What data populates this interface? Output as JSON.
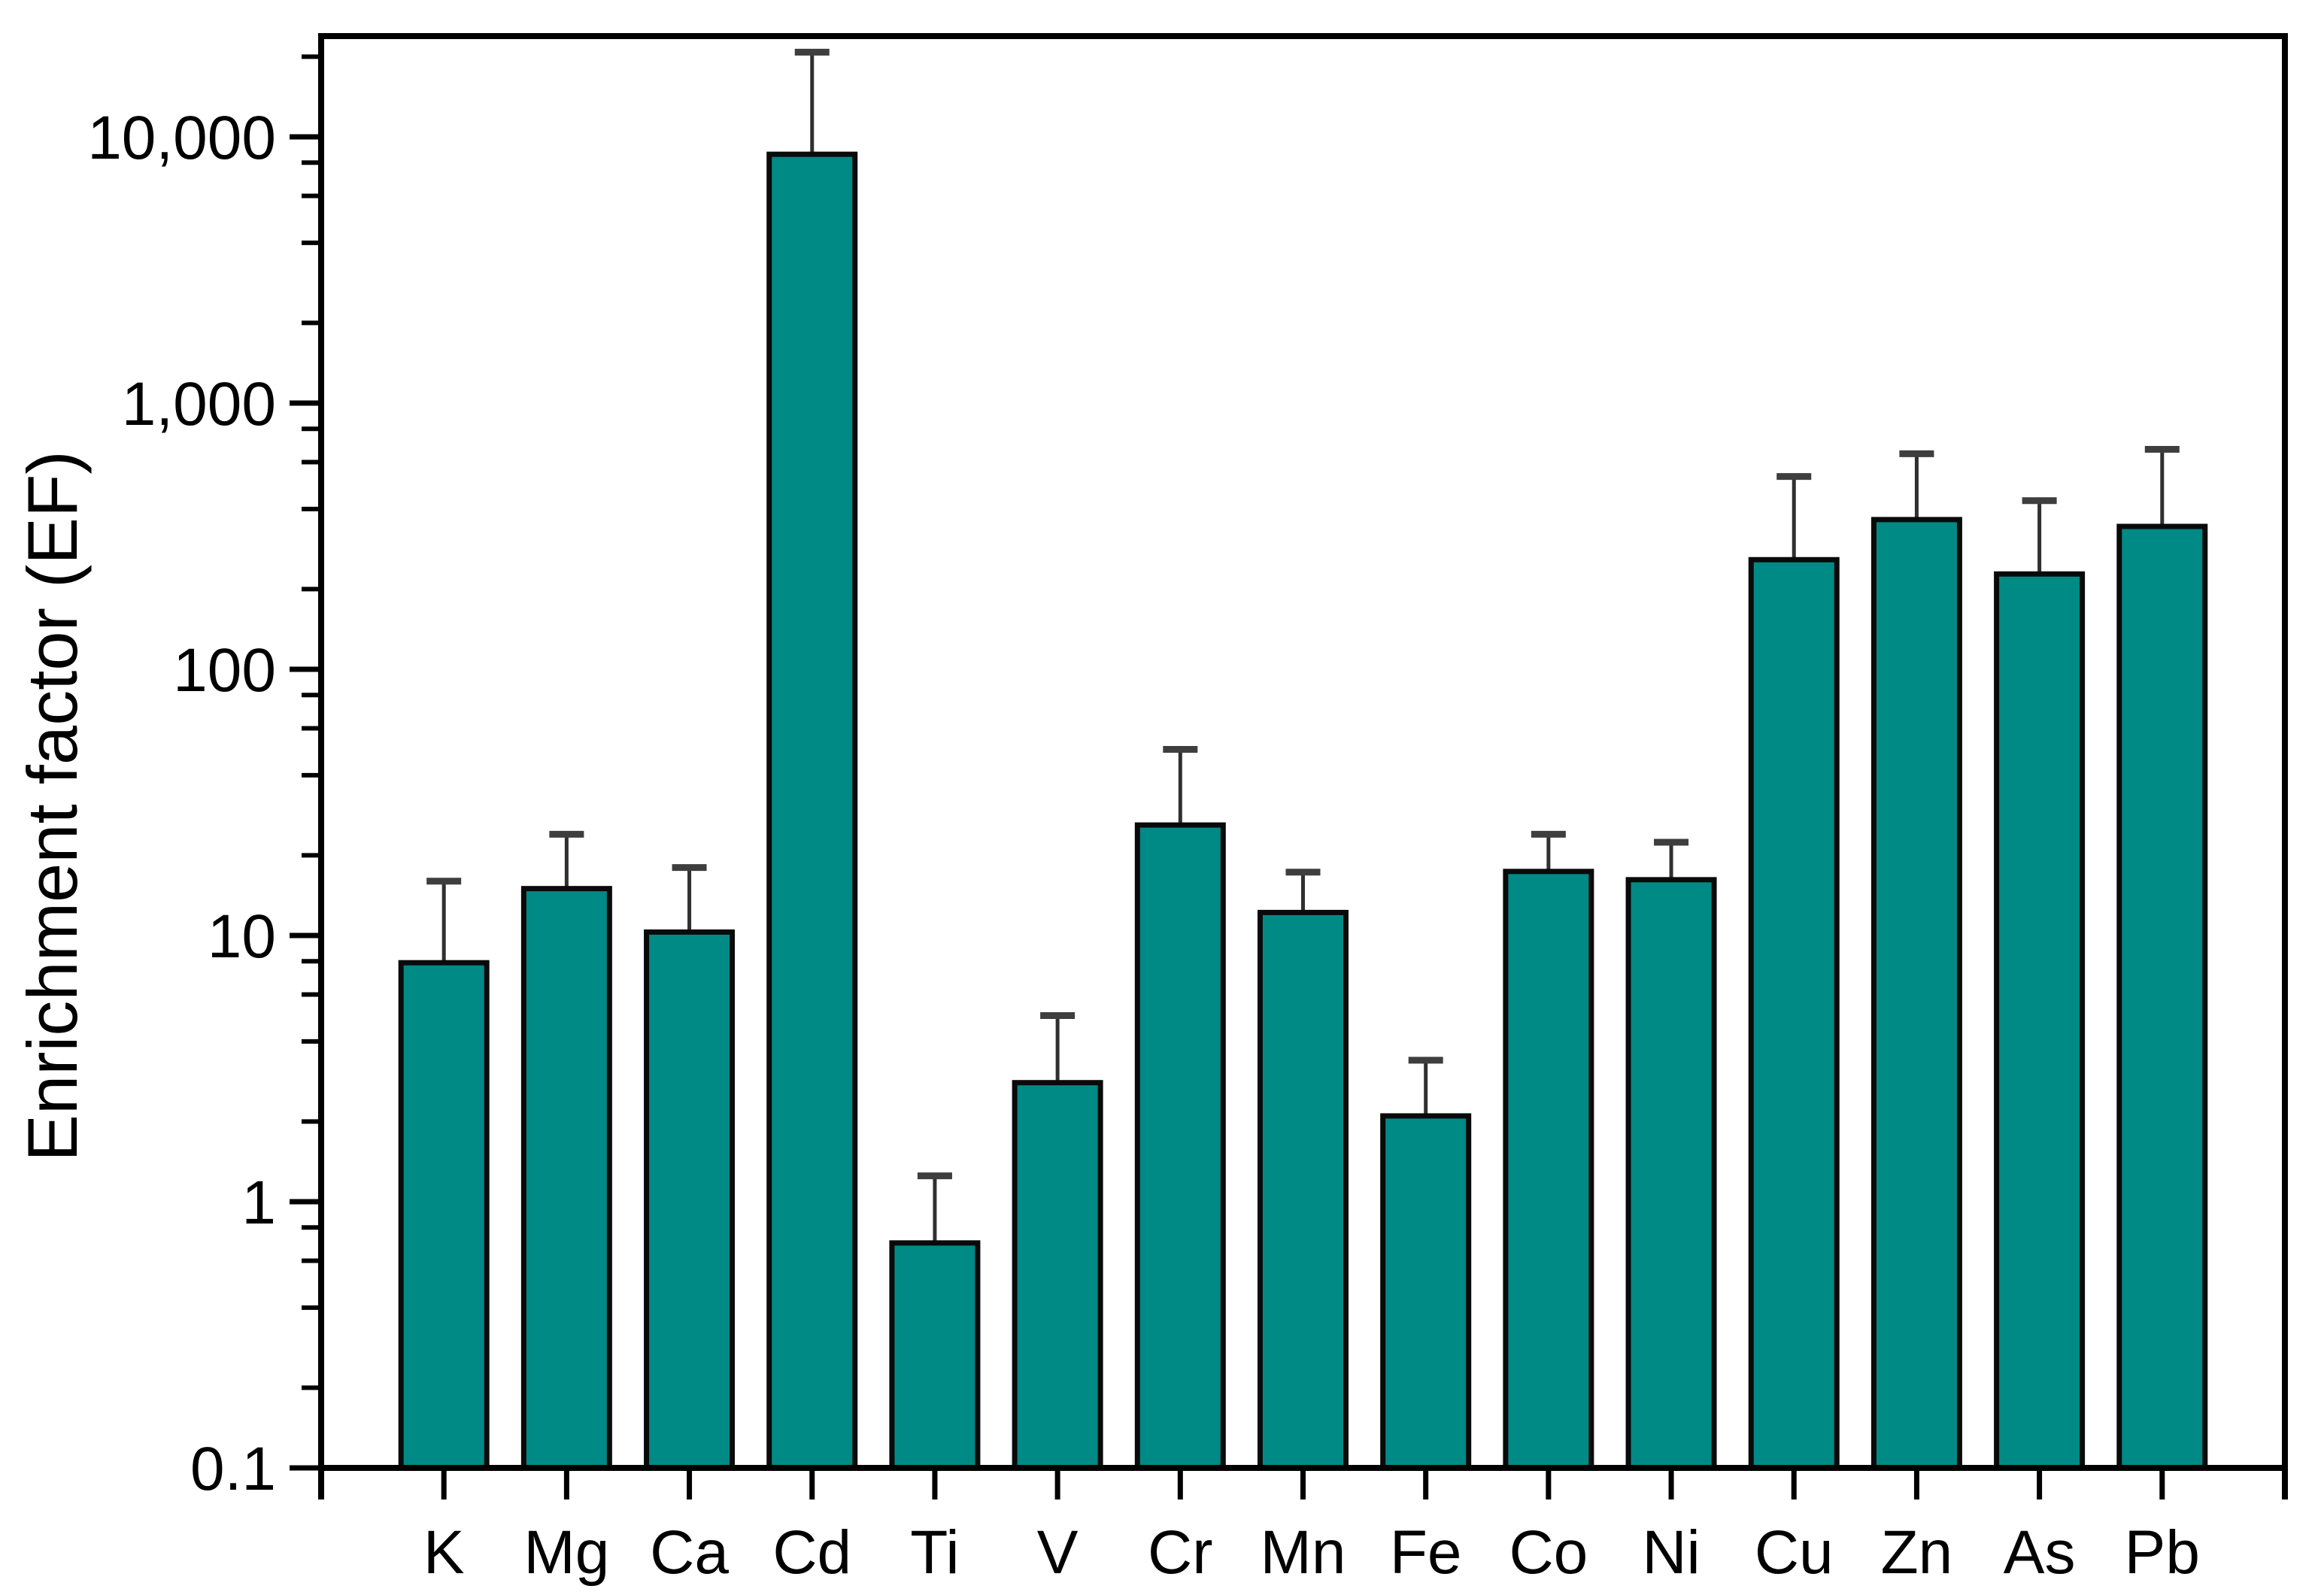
{
  "chart_data": {
    "type": "bar",
    "title": "",
    "ylabel": "Enrichment factor (EF)",
    "xlabel": "",
    "yscale": "log",
    "ylim": [
      0.1,
      23900
    ],
    "grid": false,
    "legend": "none",
    "ytick_labels": [
      "0.1",
      "1",
      "10",
      "100",
      "1,000",
      "10,000"
    ],
    "ytick_values": [
      0.1,
      1,
      10,
      100,
      1000,
      10000
    ],
    "minor_tick_multipliers": [
      2,
      4,
      6,
      8
    ],
    "categories": [
      "K",
      "Mg",
      "Ca",
      "Cd",
      "Ti",
      "V",
      "Cr",
      "Mn",
      "Fe",
      "Co",
      "Ni",
      "Cu",
      "Zn",
      "As",
      "Pb"
    ],
    "values": [
      7.9,
      15,
      10.3,
      8600,
      0.7,
      2.8,
      26,
      12.2,
      2.1,
      17.4,
      16.2,
      258,
      365,
      228,
      344
    ],
    "error_high": [
      16,
      24,
      18,
      20800,
      1.25,
      5.0,
      50,
      17.3,
      3.4,
      24,
      22.4,
      530,
      645,
      430,
      670
    ],
    "error_bars": "upper-only",
    "bar_color": "#008A86",
    "bar_edge_color": "#0a0a0a",
    "error_line_color": "#303030",
    "error_cap_color": "#3e3e3e",
    "axis_color": "#000000",
    "background_color": "#ffffff"
  }
}
